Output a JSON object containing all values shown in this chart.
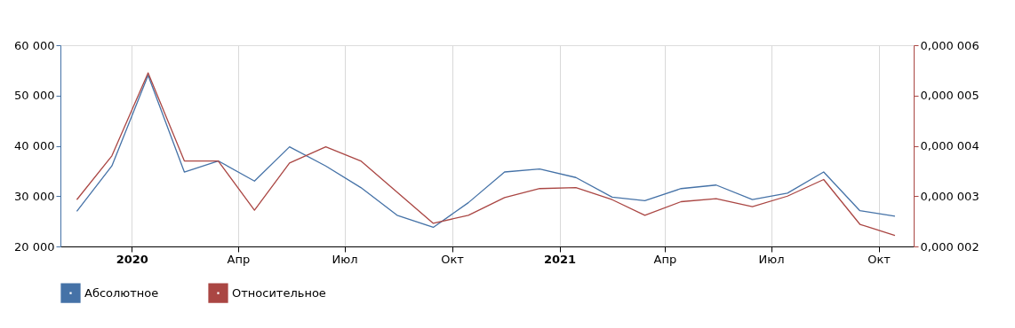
{
  "chart_data": {
    "type": "line",
    "x": [
      "2019-11-15",
      "2019-12-15",
      "2020-01-15",
      "2020-02-15",
      "2020-03-15",
      "2020-04-15",
      "2020-05-15",
      "2020-06-15",
      "2020-07-15",
      "2020-08-15",
      "2020-09-15",
      "2020-10-15",
      "2020-11-15",
      "2020-12-15",
      "2021-01-15",
      "2021-02-15",
      "2021-03-15",
      "2021-04-15",
      "2021-05-15",
      "2021-06-15",
      "2021-07-15",
      "2021-08-15",
      "2021-09-15",
      "2021-10-15"
    ],
    "series": [
      {
        "name": "Абсолютное",
        "color": "#4572a7",
        "values": [
          27000,
          36000,
          54000,
          34800,
          37000,
          33000,
          39800,
          36000,
          31700,
          26200,
          23800,
          28700,
          34800,
          35400,
          33700,
          29800,
          29100,
          31500,
          32200,
          29300,
          30600,
          34800,
          27100,
          26000
        ]
      },
      {
        "name": "Относительное",
        "color": "#aa4643",
        "axis": "y2",
        "values": [
          2.93e-06,
          3.8e-06,
          5.45e-06,
          3.7e-06,
          3.7e-06,
          2.72e-06,
          3.66e-06,
          3.98e-06,
          3.7e-06,
          3.08e-06,
          2.46e-06,
          2.62e-06,
          2.97e-06,
          3.15e-06,
          3.17e-06,
          2.93e-06,
          2.62e-06,
          2.89e-06,
          2.95e-06,
          2.79e-06,
          3e-06,
          3.33e-06,
          2.44e-06,
          2.22e-06
        ]
      }
    ],
    "xlim": [
      "2019-11-01",
      "2021-10-31"
    ],
    "xticks": [
      {
        "value": "2020-01-01",
        "label": "2020"
      },
      {
        "value": "2020-04-01",
        "label": "Апр"
      },
      {
        "value": "2020-07-01",
        "label": "Июл"
      },
      {
        "value": "2020-10-01",
        "label": "Окт"
      },
      {
        "value": "2021-01-01",
        "label": "2021"
      },
      {
        "value": "2021-04-01",
        "label": "Апр"
      },
      {
        "value": "2021-07-01",
        "label": "Июл"
      },
      {
        "value": "2021-10-01",
        "label": "Окт"
      }
    ],
    "ylim": [
      20000,
      60000
    ],
    "yticks": [
      {
        "value": 20000,
        "label": "20 000"
      },
      {
        "value": 30000,
        "label": "30 000"
      },
      {
        "value": 40000,
        "label": "40 000"
      },
      {
        "value": 50000,
        "label": "50 000"
      },
      {
        "value": 60000,
        "label": "60 000"
      }
    ],
    "y2lim": [
      2e-06,
      6e-06
    ],
    "y2ticks": [
      {
        "value": 2e-06,
        "label": "0,000 002"
      },
      {
        "value": 3e-06,
        "label": "0,000 003"
      },
      {
        "value": 4e-06,
        "label": "0,000 004"
      },
      {
        "value": 5e-06,
        "label": "0,000 005"
      },
      {
        "value": 6e-06,
        "label": "0,000 006"
      }
    ],
    "grid": "x",
    "legend": "bottom left",
    "marker": "none",
    "line_style": "solid"
  }
}
